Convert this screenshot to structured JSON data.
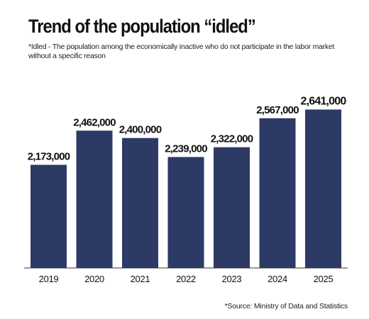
{
  "chart_data": {
    "type": "bar",
    "title": "Trend of the population “idled”",
    "subtitle": "*Idled - The population among the economically inactive who do not participate in the labor market\nwithout a specific reason",
    "source": "*Source: Ministry of Data and Statistics",
    "categories": [
      "2019",
      "2020",
      "2021",
      "2022",
      "2023",
      "2024",
      "2025"
    ],
    "values": [
      2173000,
      2462000,
      2400000,
      2239000,
      2322000,
      2567000,
      2641000
    ],
    "value_labels": [
      "2,173,000",
      "2,462,000",
      "2,400,000",
      "2,239,000",
      "2,322,000",
      "2,567,000",
      "2,641,000"
    ],
    "emphasized_index": 6,
    "ylim": [
      1300000,
      2800000
    ],
    "xlabel": "",
    "ylabel": "",
    "grid": false,
    "legend": "none",
    "bar_color": "#2e3a66"
  }
}
